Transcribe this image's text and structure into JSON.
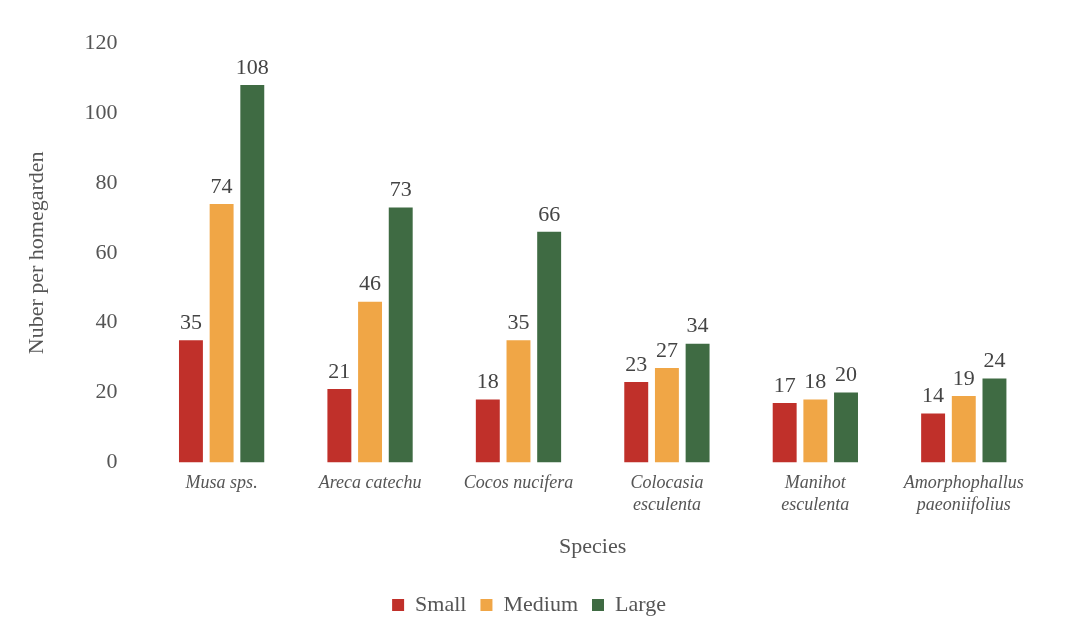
{
  "chart_data": {
    "type": "bar",
    "xlabel": "Species",
    "ylabel": "Nuber per homegarden",
    "categories": [
      "Musa sps.",
      "Areca catechu",
      "Cocos nucifera",
      "Colocasia esculenta",
      "Manihot esculenta",
      "Amorphophallus paeoniifolius"
    ],
    "series": [
      {
        "name": "Small",
        "color": "#c0302a",
        "values": [
          35,
          21,
          18,
          23,
          17,
          14
        ]
      },
      {
        "name": "Medium",
        "color": "#f0a646",
        "values": [
          74,
          46,
          35,
          27,
          18,
          19
        ]
      },
      {
        "name": "Large",
        "color": "#3f6b43",
        "values": [
          108,
          73,
          66,
          34,
          20,
          24
        ]
      }
    ],
    "ylim": [
      0,
      120
    ],
    "yticks": [
      0,
      20,
      40,
      60,
      80,
      100,
      120
    ],
    "grid": false,
    "legend": "bottom",
    "data_labels": true
  }
}
